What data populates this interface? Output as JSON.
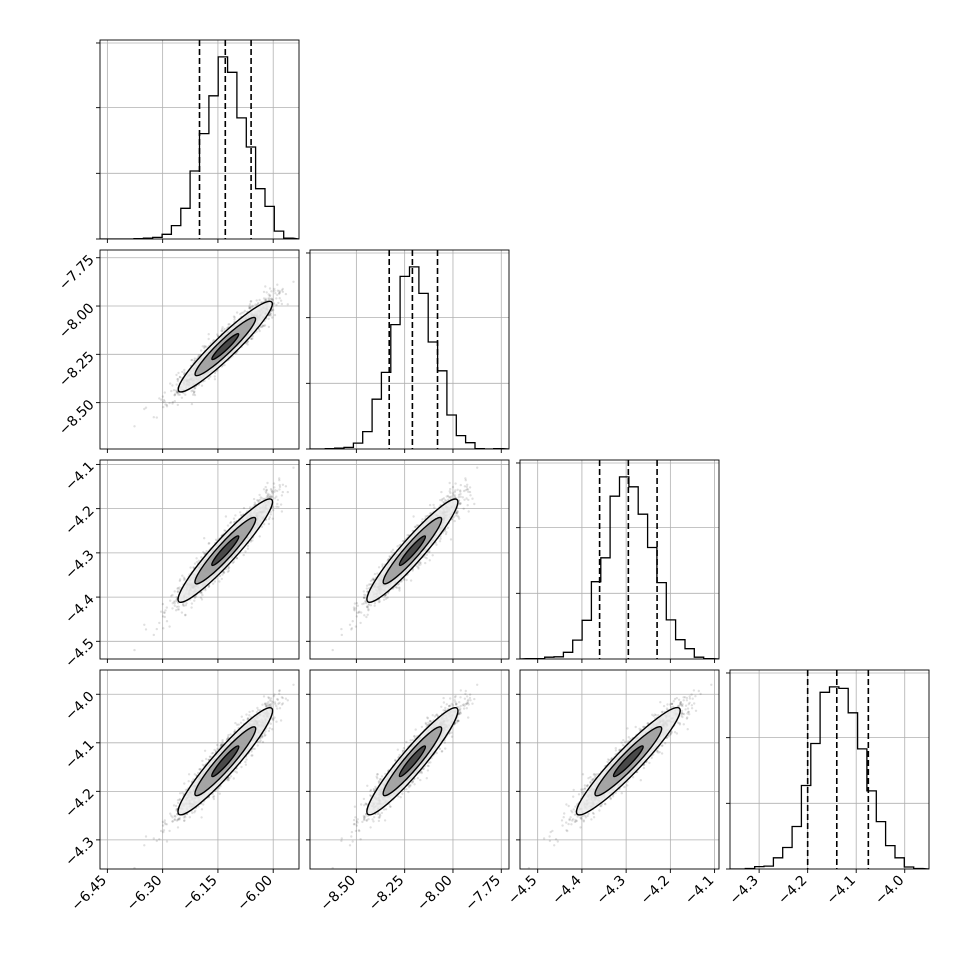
{
  "chart_data": {
    "type": "corner",
    "parameters": [
      {
        "range": [
          -6.47,
          -5.93
        ],
        "ticks": [
          -6.45,
          -6.3,
          -6.15,
          -6.0
        ],
        "tick_labels": [
          "−6.45",
          "−6.30",
          "−6.15",
          "−6.00"
        ],
        "quantiles": [
          -6.2,
          -6.13,
          -6.06
        ],
        "mean": -6.13,
        "sd": 0.06
      },
      {
        "range": [
          -8.74,
          -7.71
        ],
        "ticks": [
          -8.5,
          -8.25,
          -8.0,
          -7.75
        ],
        "tick_labels": [
          "−8.50",
          "−8.25",
          "−8.00",
          "−7.75"
        ],
        "quantiles": [
          -8.33,
          -8.21,
          -8.08
        ],
        "mean": -8.21,
        "sd": 0.11
      },
      {
        "range": [
          -4.54,
          -4.09
        ],
        "ticks": [
          -4.5,
          -4.4,
          -4.3,
          -4.2,
          -4.1
        ],
        "tick_labels": [
          "−4.5",
          "−4.4",
          "−4.3",
          "−4.2",
          "−4.1"
        ],
        "quantiles": [
          -4.36,
          -4.295,
          -4.23
        ],
        "mean": -4.295,
        "sd": 0.055
      },
      {
        "range": [
          -4.36,
          -3.95
        ],
        "ticks": [
          -4.3,
          -4.2,
          -4.1,
          -4.0
        ],
        "tick_labels": [
          "−4.3",
          "−4.2",
          "−4.1",
          "−4.0"
        ],
        "quantiles": [
          -4.2,
          -4.14,
          -4.075
        ],
        "mean": -4.138,
        "sd": 0.052
      }
    ],
    "grid": true,
    "hist_bins": 20,
    "contour_levels": 3
  }
}
